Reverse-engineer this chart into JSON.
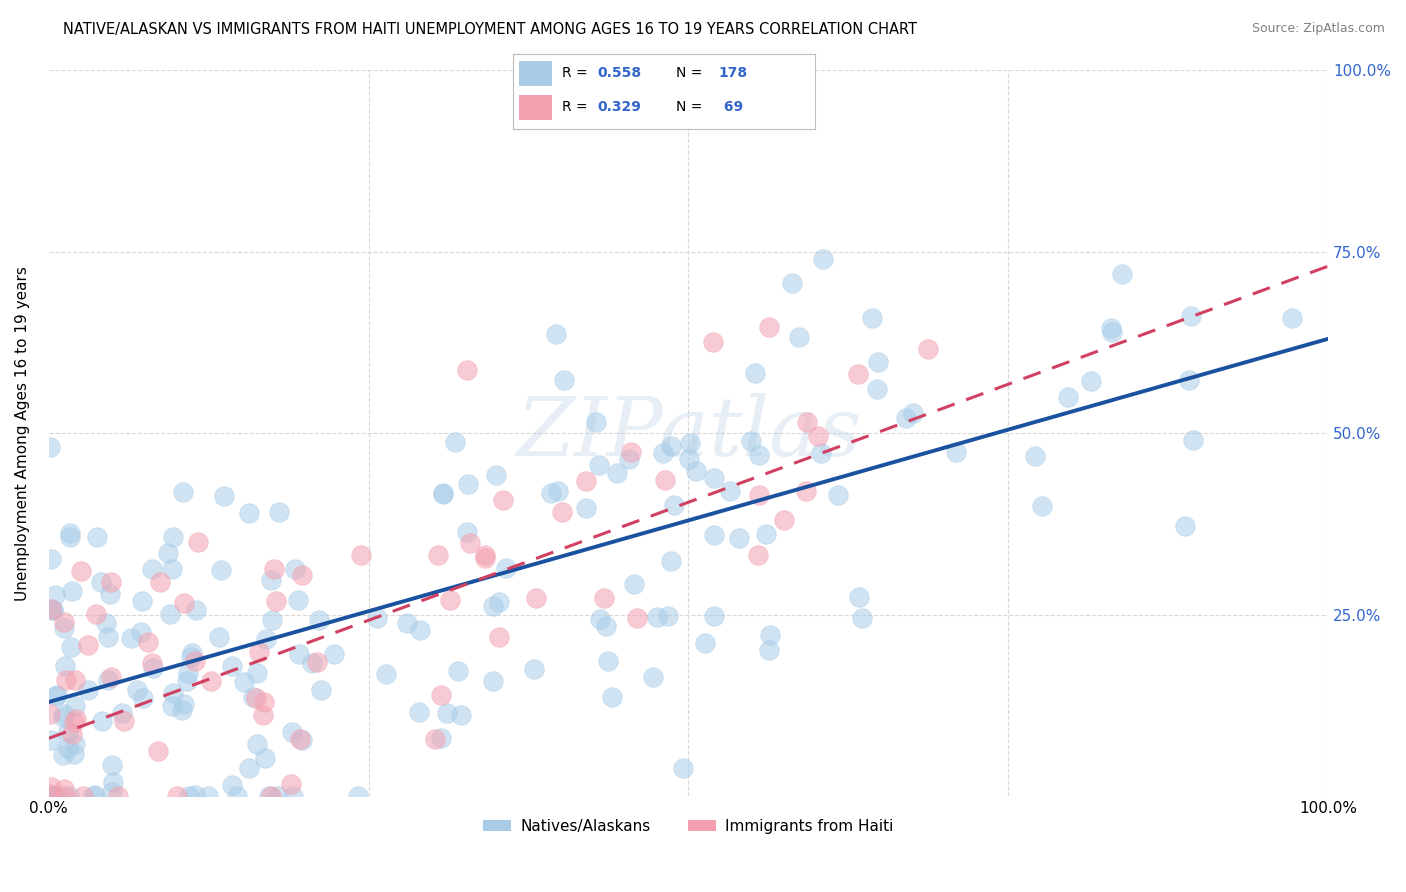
{
  "title": "NATIVE/ALASKAN VS IMMIGRANTS FROM HAITI UNEMPLOYMENT AMONG AGES 16 TO 19 YEARS CORRELATION CHART",
  "source": "Source: ZipAtlas.com",
  "ylabel": "Unemployment Among Ages 16 to 19 years",
  "xlim": [
    0.0,
    1.0
  ],
  "ylim": [
    0.0,
    1.0
  ],
  "native_R": 0.558,
  "native_N": 178,
  "haiti_R": 0.329,
  "haiti_N": 69,
  "scatter_color_native": "#a8cce8",
  "scatter_color_haiti": "#f4a0b0",
  "line_color_native": "#1a52a0",
  "line_color_haiti": "#d04060",
  "legend_R1": "0.558",
  "legend_N1": "178",
  "legend_R2": "0.329",
  "legend_N2": "69",
  "watermark": "ZIPatlas",
  "background_color": "#ffffff",
  "grid_color": "#d8d8d8",
  "right_tick_color": "#3366cc",
  "label_color": "#3366cc"
}
